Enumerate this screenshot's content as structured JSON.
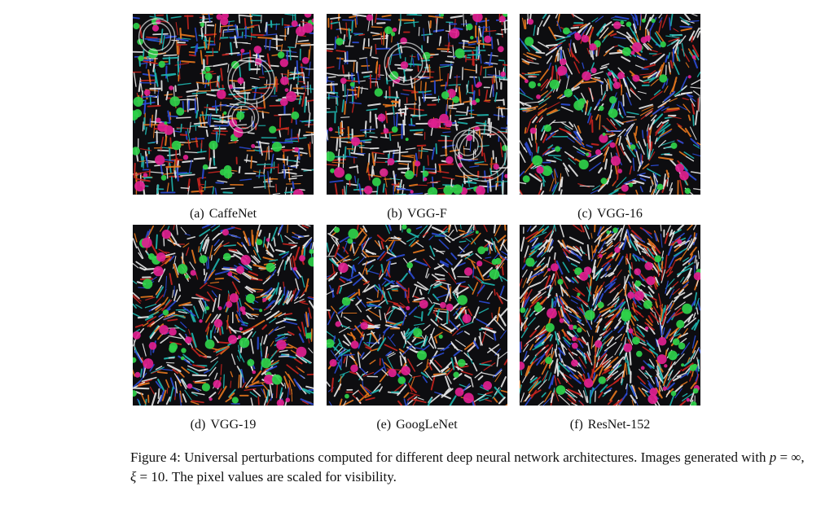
{
  "figure": {
    "panels": [
      {
        "letter": "(a)",
        "name": "CaffeNet"
      },
      {
        "letter": "(b)",
        "name": "VGG-F"
      },
      {
        "letter": "(c)",
        "name": "VGG-16"
      },
      {
        "letter": "(d)",
        "name": "VGG-19"
      },
      {
        "letter": "(e)",
        "name": "GoogLeNet"
      },
      {
        "letter": "(f)",
        "name": "ResNet-152"
      }
    ],
    "caption": {
      "label": "Figure 4:",
      "text1": "Universal perturbations computed for different deep neural network architectures. Images generated with ",
      "p_var": "p",
      "p_eq": " = ∞,",
      "xi_var": "ξ",
      "xi_eq": " = 10",
      "text2": ". The pixel values are scaled for visibility."
    }
  },
  "colors": {
    "magenta": "#e0208f",
    "green": "#2fd14a",
    "blue": "#2b4bd6",
    "orange": "#e8781e",
    "white": "#e8e8e8",
    "red": "#c8241f",
    "teal": "#1fb7b0"
  }
}
